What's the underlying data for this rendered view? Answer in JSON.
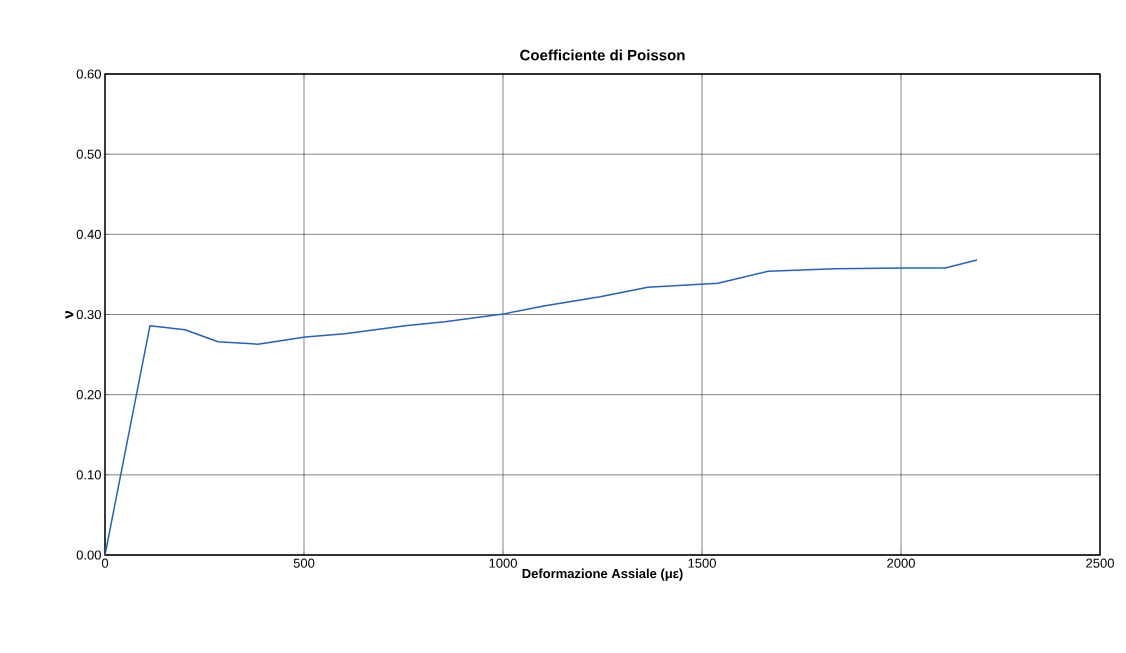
{
  "chart_data": {
    "type": "line",
    "title": "Coefficiente di Poisson",
    "xlabel": "Deformazione Assiale (με)",
    "ylabel": "ν",
    "x": [
      0,
      113,
      201,
      284,
      384,
      503,
      603,
      754,
      854,
      1005,
      1106,
      1244,
      1364,
      1540,
      1666,
      1834,
      2010,
      2111,
      2191
    ],
    "series": [
      {
        "color": "#2461c2",
        "values": [
          0,
          0.286,
          0.281,
          0.266,
          0.263,
          0.272,
          0.276,
          0.286,
          0.291,
          0.301,
          0.311,
          0.322,
          0.334,
          0.339,
          0.354,
          0.357,
          0.358,
          0.358,
          0.368
        ]
      }
    ],
    "xlim": [
      0,
      2500
    ],
    "xticks": [
      0,
      500,
      1000,
      1500,
      2000,
      2500
    ],
    "ylim": [
      0,
      0.6
    ],
    "yticks": [
      {
        "value": 0,
        "label": "0.00"
      },
      {
        "value": 0.1,
        "label": "0.10"
      },
      {
        "value": 0.2,
        "label": "0.20"
      },
      {
        "value": 0.3,
        "label": "0.30"
      },
      {
        "value": 0.4,
        "label": "0.40"
      },
      {
        "value": 0.5,
        "label": "0.50"
      },
      {
        "value": 0.6,
        "label": "0.60"
      }
    ],
    "grid": true,
    "marker": "none",
    "line_style": "solid"
  }
}
